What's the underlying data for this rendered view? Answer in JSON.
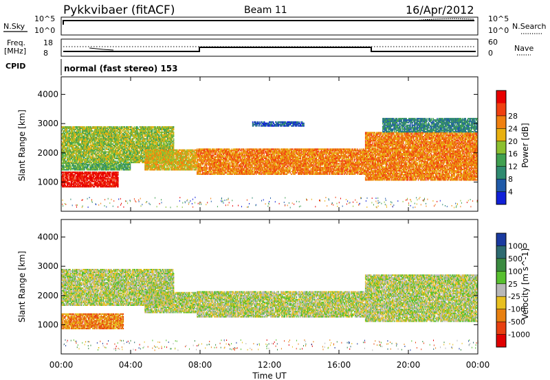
{
  "header": {
    "station": "Pykkvibaer (fitACF)",
    "beam": "Beam 11",
    "date": "16/Apr/2012"
  },
  "summary": {
    "nsky_label": "N.Sky",
    "nsearch_label": "N.Search",
    "noise_ticks": [
      "10^5",
      "10^0"
    ],
    "freq_label_1": "Freq.",
    "freq_label_2": "[MHz]",
    "freq_ticks": [
      "18",
      "8"
    ],
    "nave_label": "Nave",
    "nave_ticks": [
      "60",
      "0"
    ],
    "cpid_label": "CPID",
    "cpid_text": "normal (fast stereo) 153"
  },
  "colors": {
    "power_scale": [
      "#1020d8",
      "#1f5aa8",
      "#2f8a70",
      "#40a050",
      "#8cc030",
      "#e8b010",
      "#f08010",
      "#f04010",
      "#e80000"
    ],
    "velocity_scale": [
      "#1a3aa0",
      "#2d6a70",
      "#3a8a40",
      "#58c030",
      "#b8b8b8",
      "#e8c020",
      "#e88010",
      "#e84010",
      "#e00000"
    ],
    "ground_scatter": "#b8b8b0"
  },
  "chart_data": [
    {
      "type": "heatmap",
      "name": "power",
      "ylabel": "Slant Range [km]",
      "yticks": [
        1000,
        2000,
        3000,
        4000
      ],
      "ylim": [
        0,
        4600
      ],
      "xlim": [
        0,
        24
      ],
      "colorbar_label": "Power [dB]",
      "colorbar_ticks": [
        "4",
        "8",
        "12",
        "16",
        "20",
        "24",
        "28"
      ],
      "bands": [
        {
          "t0": 0,
          "t1": 3.3,
          "rmin": 820,
          "rmax": 1350,
          "level": 8
        },
        {
          "t0": 0,
          "t1": 4.0,
          "rmin": 1400,
          "rmax": 1650,
          "level": 3
        },
        {
          "t0": 0,
          "t1": 6.5,
          "rmin": 1650,
          "rmax": 2900,
          "level": 4
        },
        {
          "t0": 4.8,
          "t1": 7.8,
          "rmin": 1400,
          "rmax": 2100,
          "level": 5
        },
        {
          "t0": 7.8,
          "t1": 17.5,
          "rmin": 1250,
          "rmax": 2150,
          "level": 6
        },
        {
          "t0": 11.0,
          "t1": 14.0,
          "rmin": 2900,
          "rmax": 3100,
          "level": 1
        },
        {
          "t0": 17.5,
          "t1": 24,
          "rmin": 1050,
          "rmax": 2700,
          "level": 6
        },
        {
          "t0": 18.5,
          "t1": 24,
          "rmin": 2700,
          "rmax": 3200,
          "level": 2
        }
      ]
    },
    {
      "type": "heatmap",
      "name": "velocity",
      "ylabel": "Slant Range [km]",
      "yticks": [
        1000,
        2000,
        3000,
        4000
      ],
      "ylim": [
        0,
        4600
      ],
      "xlim": [
        0,
        24
      ],
      "colorbar_label": "Velocity [m s^-1]",
      "colorbar_ticks": [
        "1000",
        "500",
        "100",
        "25",
        "-25",
        "-100",
        "-500",
        "-1000"
      ],
      "bands": [
        {
          "t0": 0,
          "t1": 3.6,
          "rmin": 850,
          "rmax": 1400,
          "level": 6
        },
        {
          "t0": 0,
          "t1": 6.5,
          "rmin": 1650,
          "rmax": 2900,
          "level": 4
        },
        {
          "t0": 4.8,
          "t1": 7.8,
          "rmin": 1400,
          "rmax": 2100,
          "level": 4
        },
        {
          "t0": 7.8,
          "t1": 17.5,
          "rmin": 1250,
          "rmax": 2150,
          "level": 4
        },
        {
          "t0": 17.5,
          "t1": 24,
          "rmin": 1100,
          "rmax": 2700,
          "level": 4
        }
      ]
    }
  ],
  "xaxis": {
    "label": "Time UT",
    "ticks": [
      "00:00",
      "04:00",
      "08:00",
      "12:00",
      "16:00",
      "20:00",
      "00:00"
    ]
  }
}
